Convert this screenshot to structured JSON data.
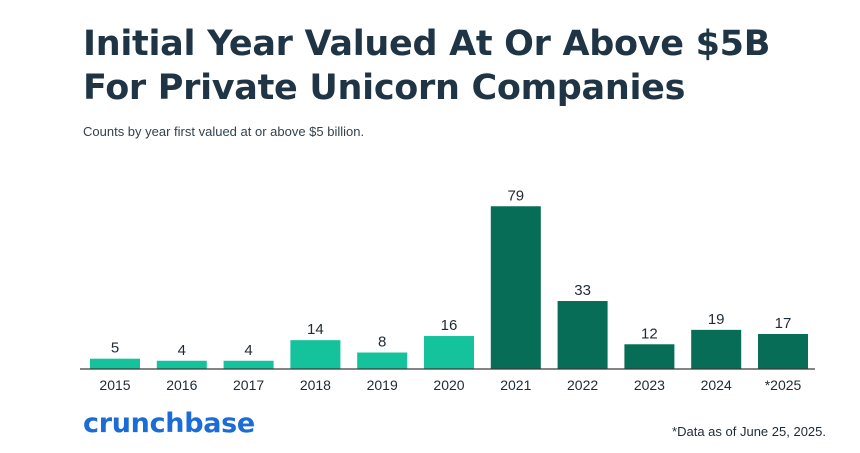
{
  "header": {
    "title": "Initial Year Valued At Or Above $5B For Private Unicorn Companies",
    "subtitle": "Counts by year first valued at or above $5 billion."
  },
  "footer": {
    "logo_text": "crunchbase",
    "note": "*Data as of June 25, 2025."
  },
  "colors": {
    "light_bar": "#14c29b",
    "dark_bar": "#076d57",
    "axis": "#3a3a3a",
    "logo": "#1c6cd8",
    "title": "#1f3545"
  },
  "chart_data": {
    "type": "bar",
    "categories": [
      "2015",
      "2016",
      "2017",
      "2018",
      "2019",
      "2020",
      "2021",
      "2022",
      "2023",
      "2024",
      "*2025"
    ],
    "values": [
      5,
      4,
      4,
      14,
      8,
      16,
      79,
      33,
      12,
      19,
      17
    ],
    "bar_colors": [
      "light",
      "light",
      "light",
      "light",
      "light",
      "light",
      "dark",
      "dark",
      "dark",
      "dark",
      "dark"
    ],
    "title": "Initial Year Valued At Or Above $5B For Private Unicorn Companies",
    "subtitle": "Counts by year first valued at or above $5 billion.",
    "xlabel": "",
    "ylabel": "",
    "ylim": [
      0,
      80
    ],
    "grid": false,
    "legend": "none",
    "data_labels": true
  }
}
